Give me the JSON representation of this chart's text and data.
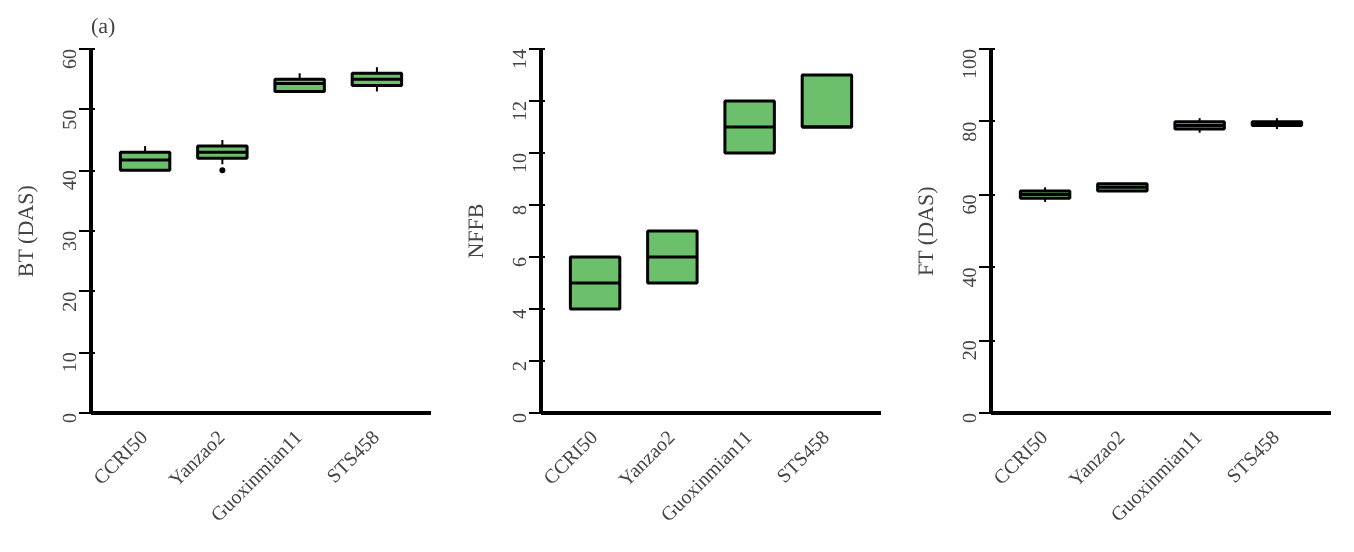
{
  "chart_data": [
    {
      "type": "box",
      "annotations": [
        "(a)"
      ],
      "ylabel": "BT (DAS)",
      "categories": [
        "CCRI50",
        "Yanzao2",
        "Guoxinmian11",
        "STS458"
      ],
      "color": "#6cc06c",
      "ylim": [
        0,
        60
      ],
      "yticks": [
        0,
        10,
        20,
        30,
        40,
        50,
        60
      ],
      "grid": false,
      "boxes": [
        {
          "low": 40,
          "q1": 40,
          "median": 41.7,
          "q3": 43,
          "high": 44
        },
        {
          "low": 41,
          "q1": 42,
          "median": 43,
          "q3": 44,
          "high": 45,
          "outliers": [
            40
          ]
        },
        {
          "low": 53,
          "q1": 53,
          "median": 54.3,
          "q3": 55,
          "high": 56
        },
        {
          "low": 53,
          "q1": 54,
          "median": 55,
          "q3": 56,
          "high": 57
        }
      ]
    },
    {
      "type": "box",
      "ylabel": "NFFB",
      "categories": [
        "CCRI50",
        "Yanzao2",
        "Guoxinmian11",
        "STS458"
      ],
      "color": "#6cc06c",
      "ylim": [
        0,
        14
      ],
      "yticks": [
        0,
        2,
        4,
        6,
        8,
        10,
        12,
        14
      ],
      "grid": false,
      "boxes": [
        {
          "low": 4,
          "q1": 4,
          "median": 5,
          "q3": 6,
          "high": 6
        },
        {
          "low": 5,
          "q1": 5,
          "median": 6,
          "q3": 7,
          "high": 7
        },
        {
          "low": 10,
          "q1": 10,
          "median": 11,
          "q3": 12,
          "high": 12
        },
        {
          "low": 11,
          "q1": 11,
          "median": 11,
          "q3": 13,
          "high": 13
        }
      ]
    },
    {
      "type": "box",
      "ylabel": "FT (DAS)",
      "categories": [
        "CCRI50",
        "Yanzao2",
        "Guoxinmian11",
        "STS458"
      ],
      "color": "#6cc06c",
      "ylim": [
        0,
        100
      ],
      "yticks": [
        0,
        20,
        40,
        60,
        80,
        100
      ],
      "grid": false,
      "boxes": [
        {
          "low": 58,
          "q1": 59,
          "median": 60,
          "q3": 61,
          "high": 62
        },
        {
          "low": 61,
          "q1": 61,
          "median": 62,
          "q3": 63,
          "high": 63
        },
        {
          "low": 77,
          "q1": 78,
          "median": 79,
          "q3": 80,
          "high": 81
        },
        {
          "low": 78,
          "q1": 79,
          "median": 79.5,
          "q3": 80,
          "high": 81
        }
      ]
    }
  ]
}
